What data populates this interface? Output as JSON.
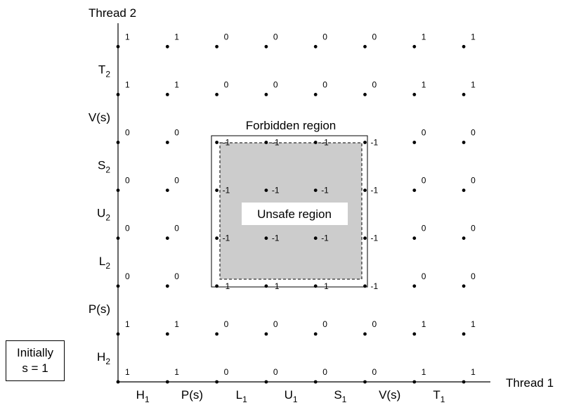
{
  "axes": {
    "x_label": "Thread 1",
    "y_label": "Thread 2"
  },
  "x_steps": [
    {
      "main": "H",
      "sub": "1"
    },
    {
      "main": "P(s)",
      "sub": ""
    },
    {
      "main": "L",
      "sub": "1"
    },
    {
      "main": "U",
      "sub": "1"
    },
    {
      "main": "S",
      "sub": "1"
    },
    {
      "main": "V(s)",
      "sub": ""
    },
    {
      "main": "T",
      "sub": "1"
    }
  ],
  "y_steps": [
    {
      "main": "H",
      "sub": "2"
    },
    {
      "main": "P(s)",
      "sub": ""
    },
    {
      "main": "L",
      "sub": "2"
    },
    {
      "main": "U",
      "sub": "2"
    },
    {
      "main": "S",
      "sub": "2"
    },
    {
      "main": "V(s)",
      "sub": ""
    },
    {
      "main": "T",
      "sub": "2"
    }
  ],
  "grid_values": [
    [
      "1",
      "1",
      "0",
      "0",
      "0",
      "0",
      "1",
      "1"
    ],
    [
      "1",
      "1",
      "0",
      "0",
      "0",
      "0",
      "1",
      "1"
    ],
    [
      "0",
      "0",
      "-1",
      "-1",
      "-1",
      "-1",
      "0",
      "0"
    ],
    [
      "0",
      "0",
      "-1",
      "-1",
      "-1",
      "-1",
      "0",
      "0"
    ],
    [
      "0",
      "0",
      "-1",
      "-1",
      "-1",
      "-1",
      "0",
      "0"
    ],
    [
      "0",
      "0",
      "-1",
      "-1",
      "-1",
      "-1",
      "0",
      "0"
    ],
    [
      "1",
      "1",
      "0",
      "0",
      "0",
      "0",
      "1",
      "1"
    ],
    [
      "1",
      "1",
      "0",
      "0",
      "0",
      "0",
      "1",
      "1"
    ]
  ],
  "regions": {
    "forbidden_label": "Forbidden region",
    "unsafe_label": "Unsafe region",
    "unsafe_fill": "#cccccc"
  },
  "note": {
    "line1": "Initially",
    "line2": "s = 1"
  }
}
